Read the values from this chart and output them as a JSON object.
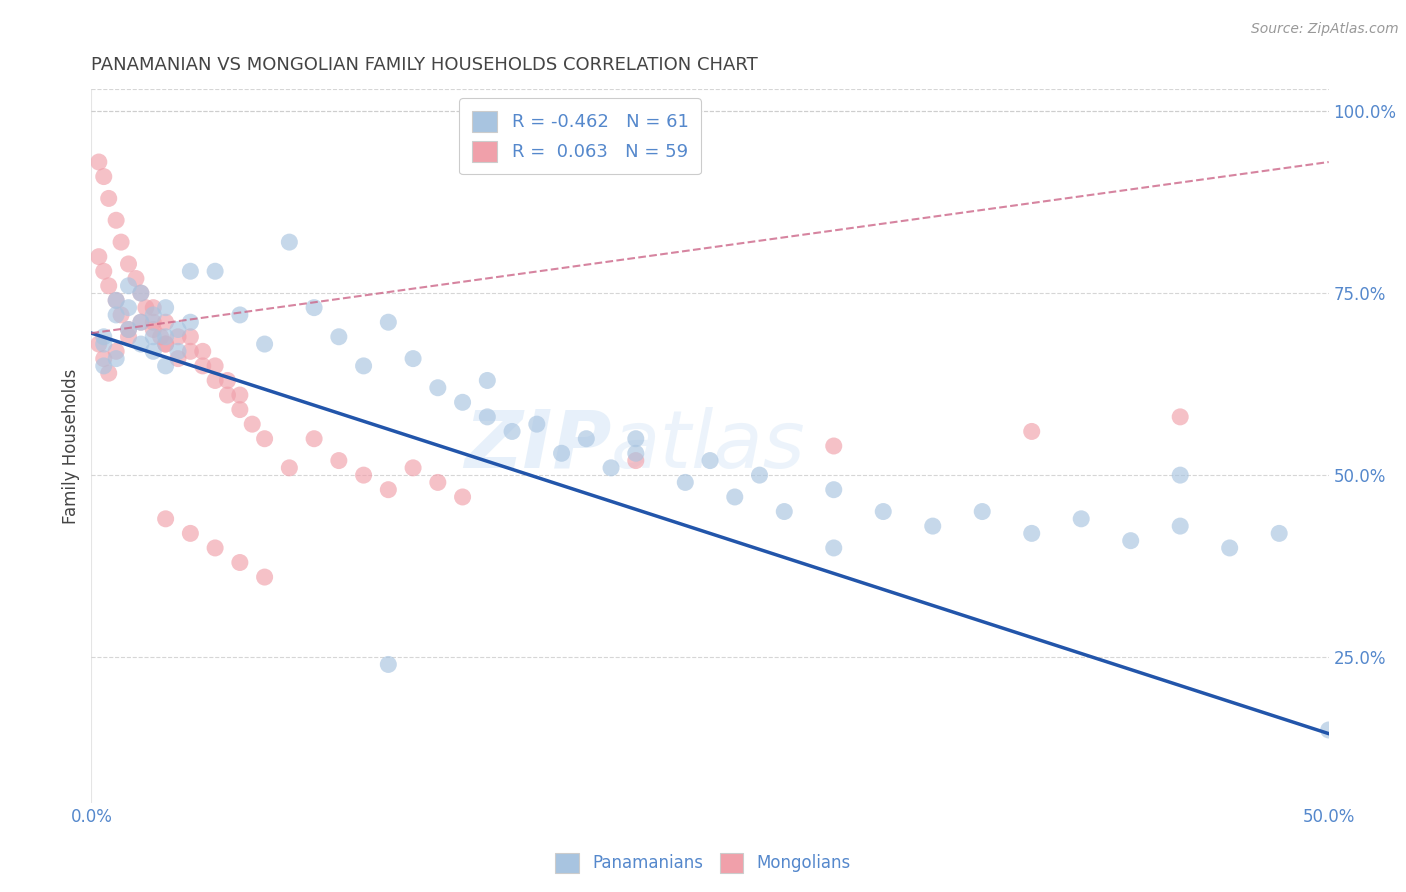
{
  "title": "PANAMANIAN VS MONGOLIAN FAMILY HOUSEHOLDS CORRELATION CHART",
  "source": "Source: ZipAtlas.com",
  "ylabel": "Family Households",
  "xlim": [
    0.0,
    0.5
  ],
  "ylim": [
    0.05,
    1.03
  ],
  "xtick_show": [
    0.0,
    0.5
  ],
  "xticklabels_show": [
    "0.0%",
    "50.0%"
  ],
  "yticks_right": [
    0.25,
    0.5,
    0.75,
    1.0
  ],
  "yticklabels_right": [
    "25.0%",
    "50.0%",
    "75.0%",
    "100.0%"
  ],
  "legend_labels": [
    "Panamanians",
    "Mongolians"
  ],
  "legend_R": [
    -0.462,
    0.063
  ],
  "legend_N": [
    61,
    59
  ],
  "blue_color": "#a8c4e0",
  "pink_color": "#f0a0aa",
  "blue_line_color": "#2255aa",
  "pink_line_color": "#cc6688",
  "background_color": "#ffffff",
  "grid_color": "#cccccc",
  "watermark_left": "ZIP",
  "watermark_right": "atlas",
  "title_color": "#444444",
  "axis_label_color": "#5588cc",
  "blue_dots_x": [
    0.005,
    0.01,
    0.015,
    0.02,
    0.025,
    0.03,
    0.035,
    0.04,
    0.005,
    0.01,
    0.015,
    0.02,
    0.025,
    0.03,
    0.035,
    0.04,
    0.005,
    0.01,
    0.015,
    0.02,
    0.025,
    0.03,
    0.05,
    0.06,
    0.07,
    0.08,
    0.09,
    0.1,
    0.11,
    0.12,
    0.13,
    0.14,
    0.15,
    0.16,
    0.17,
    0.18,
    0.19,
    0.2,
    0.21,
    0.22,
    0.24,
    0.25,
    0.26,
    0.27,
    0.28,
    0.3,
    0.32,
    0.34,
    0.36,
    0.38,
    0.4,
    0.42,
    0.44,
    0.46,
    0.48,
    0.5,
    0.16,
    0.22,
    0.3,
    0.44,
    0.12
  ],
  "blue_dots_y": [
    0.68,
    0.72,
    0.7,
    0.75,
    0.69,
    0.73,
    0.67,
    0.71,
    0.65,
    0.74,
    0.76,
    0.68,
    0.72,
    0.65,
    0.7,
    0.78,
    0.69,
    0.66,
    0.73,
    0.71,
    0.67,
    0.69,
    0.78,
    0.72,
    0.68,
    0.82,
    0.73,
    0.69,
    0.65,
    0.71,
    0.66,
    0.62,
    0.6,
    0.58,
    0.56,
    0.57,
    0.53,
    0.55,
    0.51,
    0.53,
    0.49,
    0.52,
    0.47,
    0.5,
    0.45,
    0.48,
    0.45,
    0.43,
    0.45,
    0.42,
    0.44,
    0.41,
    0.43,
    0.4,
    0.42,
    0.15,
    0.63,
    0.55,
    0.4,
    0.5,
    0.24
  ],
  "pink_dots_x": [
    0.003,
    0.005,
    0.007,
    0.01,
    0.012,
    0.015,
    0.018,
    0.02,
    0.022,
    0.025,
    0.028,
    0.03,
    0.003,
    0.005,
    0.007,
    0.01,
    0.012,
    0.015,
    0.003,
    0.005,
    0.007,
    0.01,
    0.015,
    0.02,
    0.025,
    0.03,
    0.035,
    0.04,
    0.045,
    0.05,
    0.055,
    0.06,
    0.025,
    0.03,
    0.035,
    0.04,
    0.045,
    0.05,
    0.055,
    0.06,
    0.065,
    0.07,
    0.08,
    0.09,
    0.1,
    0.11,
    0.12,
    0.13,
    0.14,
    0.15,
    0.03,
    0.04,
    0.05,
    0.06,
    0.07,
    0.22,
    0.3,
    0.38,
    0.44
  ],
  "pink_dots_y": [
    0.93,
    0.91,
    0.88,
    0.85,
    0.82,
    0.79,
    0.77,
    0.75,
    0.73,
    0.71,
    0.69,
    0.68,
    0.8,
    0.78,
    0.76,
    0.74,
    0.72,
    0.7,
    0.68,
    0.66,
    0.64,
    0.67,
    0.69,
    0.71,
    0.7,
    0.68,
    0.66,
    0.69,
    0.67,
    0.65,
    0.63,
    0.61,
    0.73,
    0.71,
    0.69,
    0.67,
    0.65,
    0.63,
    0.61,
    0.59,
    0.57,
    0.55,
    0.51,
    0.55,
    0.52,
    0.5,
    0.48,
    0.51,
    0.49,
    0.47,
    0.44,
    0.42,
    0.4,
    0.38,
    0.36,
    0.52,
    0.54,
    0.56,
    0.58
  ],
  "blue_trend_x0": 0.0,
  "blue_trend_y0": 0.695,
  "blue_trend_x1": 0.5,
  "blue_trend_y1": 0.145,
  "pink_trend_x0": 0.0,
  "pink_trend_y0": 0.695,
  "pink_trend_x1": 0.5,
  "pink_trend_y1": 0.93
}
